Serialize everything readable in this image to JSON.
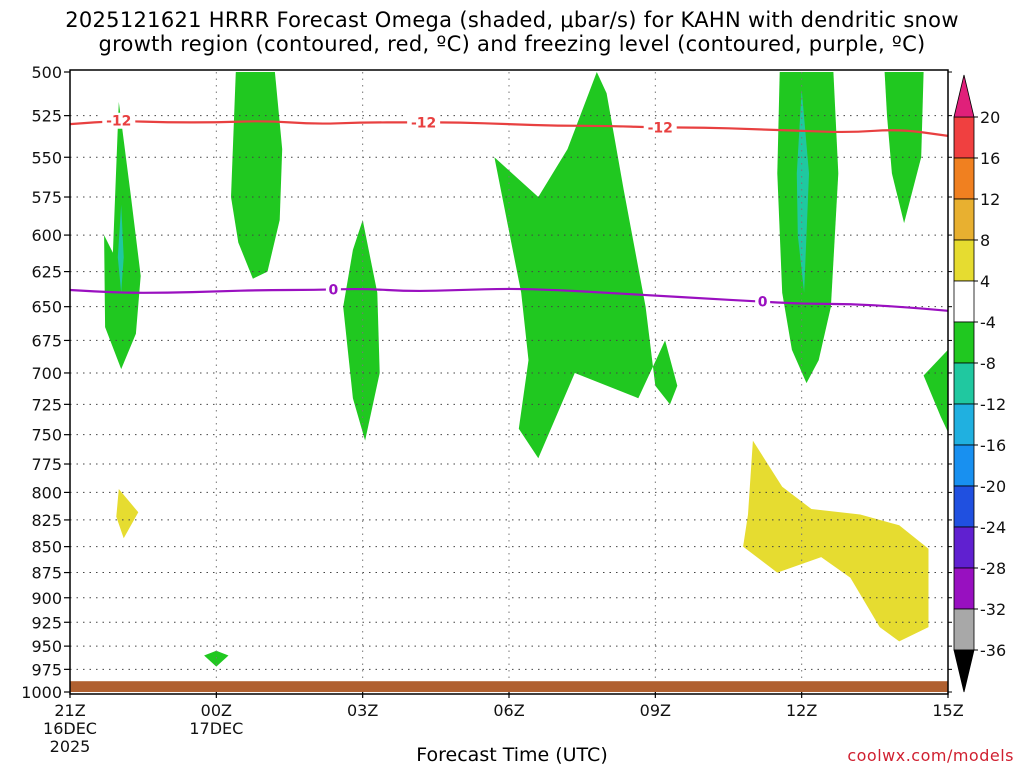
{
  "title_line1": "2025121621 HRRR Forecast Omega (shaded, μbar/s) for KAHN with dendritic snow",
  "title_line2": "growth region (contoured, red, ºC) and freezing level (contoured, purple, ºC)",
  "xlabel": "Forecast Time (UTC)",
  "credit": "coolwx.com/models",
  "chart_data": {
    "type": "time-height",
    "xlabel": "Forecast Time (UTC)",
    "ylabel": "",
    "ylim": [
      500,
      1000
    ],
    "y_scale": "pressure, inverted (log-like)",
    "xlim_hours": [
      0,
      18
    ],
    "grid": true,
    "y_ticks": [
      500,
      525,
      550,
      575,
      600,
      625,
      650,
      675,
      700,
      725,
      750,
      775,
      800,
      825,
      850,
      875,
      900,
      925,
      950,
      975,
      1000
    ],
    "x_ticks": [
      {
        "hour": 0,
        "label": "21Z",
        "sub1": "16DEC",
        "sub2": "2025"
      },
      {
        "hour": 3,
        "label": "00Z",
        "sub1": "17DEC",
        "sub2": ""
      },
      {
        "hour": 6,
        "label": "03Z",
        "sub1": "",
        "sub2": ""
      },
      {
        "hour": 9,
        "label": "06Z",
        "sub1": "",
        "sub2": ""
      },
      {
        "hour": 12,
        "label": "09Z",
        "sub1": "",
        "sub2": ""
      },
      {
        "hour": 15,
        "label": "12Z",
        "sub1": "",
        "sub2": ""
      },
      {
        "hour": 18,
        "label": "15Z",
        "sub1": "",
        "sub2": ""
      }
    ],
    "colorbar": {
      "labels": [
        "20",
        "16",
        "12",
        "8",
        "4",
        "-4",
        "-8",
        "-12",
        "-16",
        "-20",
        "-24",
        "-28",
        "-32",
        "-36"
      ],
      "bins": [
        {
          "from": 16,
          "to": 20,
          "color": "#f04040"
        },
        {
          "from": 12,
          "to": 16,
          "color": "#f08020"
        },
        {
          "from": 8,
          "to": 12,
          "color": "#e8b030"
        },
        {
          "from": 4,
          "to": 8,
          "color": "#e6dc30"
        },
        {
          "from": -4,
          "to": 4,
          "color": "#ffffff"
        },
        {
          "from": -8,
          "to": -4,
          "color": "#20c820"
        },
        {
          "from": -12,
          "to": -8,
          "color": "#20c8a0"
        },
        {
          "from": -16,
          "to": -12,
          "color": "#20b0e0"
        },
        {
          "from": -20,
          "to": -16,
          "color": "#1890f0"
        },
        {
          "from": -24,
          "to": -20,
          "color": "#2050e0"
        },
        {
          "from": -28,
          "to": -24,
          "color": "#6020d0"
        },
        {
          "from": -32,
          "to": -28,
          "color": "#9810c0"
        },
        {
          "from": -36,
          "to": -32,
          "color": "#a8a8a8"
        }
      ],
      "top_arrow_color": "#e0207a",
      "bottom_arrow_color": "#000000"
    },
    "omega_regions": [
      {
        "color": "#20c820",
        "pts": [
          [
            0.88,
            612
          ],
          [
            1.0,
            517
          ],
          [
            1.25,
            575
          ],
          [
            1.45,
            628
          ],
          [
            1.35,
            670
          ],
          [
            1.05,
            697
          ],
          [
            0.72,
            665
          ],
          [
            0.7,
            600
          ]
        ]
      },
      {
        "color": "#20c8a0",
        "pts": [
          [
            1.05,
            580
          ],
          [
            1.1,
            615
          ],
          [
            1.05,
            640
          ],
          [
            0.98,
            615
          ]
        ]
      },
      {
        "color": "#20c820",
        "pts": [
          [
            3.4,
            500
          ],
          [
            4.2,
            500
          ],
          [
            4.35,
            545
          ],
          [
            4.3,
            590
          ],
          [
            4.05,
            625
          ],
          [
            3.75,
            630
          ],
          [
            3.45,
            605
          ],
          [
            3.3,
            575
          ]
        ]
      },
      {
        "color": "#20c820",
        "pts": [
          [
            6.0,
            590
          ],
          [
            6.3,
            640
          ],
          [
            6.35,
            700
          ],
          [
            6.05,
            755
          ],
          [
            5.8,
            720
          ],
          [
            5.6,
            650
          ],
          [
            5.8,
            610
          ]
        ]
      },
      {
        "color": "#20c820",
        "pts": [
          [
            8.7,
            550
          ],
          [
            9.6,
            575
          ],
          [
            10.2,
            545
          ],
          [
            10.8,
            500
          ],
          [
            11.0,
            512
          ],
          [
            11.35,
            570
          ],
          [
            11.8,
            650
          ],
          [
            12.0,
            710
          ],
          [
            12.3,
            725
          ],
          [
            12.45,
            710
          ],
          [
            12.2,
            675
          ],
          [
            11.65,
            720
          ],
          [
            10.35,
            700
          ],
          [
            9.6,
            770
          ],
          [
            9.2,
            745
          ],
          [
            9.4,
            690
          ],
          [
            9.25,
            640
          ]
        ]
      },
      {
        "color": "#20c820",
        "pts": [
          [
            14.55,
            500
          ],
          [
            15.65,
            500
          ],
          [
            15.75,
            560
          ],
          [
            15.6,
            650
          ],
          [
            15.35,
            690
          ],
          [
            15.1,
            708
          ],
          [
            14.8,
            682
          ],
          [
            14.6,
            640
          ],
          [
            14.5,
            560
          ]
        ]
      },
      {
        "color": "#20c8a0",
        "pts": [
          [
            15.0,
            510
          ],
          [
            15.15,
            560
          ],
          [
            15.05,
            640
          ],
          [
            14.92,
            600
          ],
          [
            14.9,
            560
          ]
        ]
      },
      {
        "color": "#20c820",
        "pts": [
          [
            16.7,
            500
          ],
          [
            17.5,
            500
          ],
          [
            17.45,
            550
          ],
          [
            17.1,
            592
          ],
          [
            16.85,
            560
          ],
          [
            16.75,
            525
          ]
        ]
      },
      {
        "color": "#20c820",
        "pts": [
          [
            18.0,
            682
          ],
          [
            17.5,
            702
          ],
          [
            17.85,
            735
          ],
          [
            18.0,
            748
          ]
        ]
      },
      {
        "color": "#20c820",
        "pts": [
          [
            3.0,
            955
          ],
          [
            3.25,
            960
          ],
          [
            3.0,
            972
          ],
          [
            2.75,
            960
          ]
        ]
      },
      {
        "color": "#e6dc30",
        "pts": [
          [
            1.0,
            797
          ],
          [
            1.4,
            818
          ],
          [
            1.1,
            842
          ],
          [
            0.95,
            822
          ]
        ]
      },
      {
        "color": "#e6dc30",
        "pts": [
          [
            14.0,
            755
          ],
          [
            14.6,
            795
          ],
          [
            15.2,
            815
          ],
          [
            16.2,
            820
          ],
          [
            17.0,
            830
          ],
          [
            17.6,
            852
          ],
          [
            17.6,
            930
          ],
          [
            17.0,
            945
          ],
          [
            16.6,
            930
          ],
          [
            16.0,
            880
          ],
          [
            15.4,
            860
          ],
          [
            14.5,
            875
          ],
          [
            13.8,
            850
          ],
          [
            13.9,
            820
          ]
        ]
      }
    ],
    "contours": [
      {
        "name": "dendritic snow growth region",
        "color": "#e84040",
        "label": "-12",
        "label_at_hours": [
          1.0,
          7.25,
          12.1
        ],
        "pts": [
          [
            0,
            530
          ],
          [
            1,
            528
          ],
          [
            2,
            529
          ],
          [
            3,
            529
          ],
          [
            4,
            528
          ],
          [
            5,
            530
          ],
          [
            6,
            529
          ],
          [
            7,
            529
          ],
          [
            8,
            529
          ],
          [
            9,
            530
          ],
          [
            10,
            531
          ],
          [
            11,
            531
          ],
          [
            12,
            532
          ],
          [
            13,
            532
          ],
          [
            14,
            533
          ],
          [
            15,
            534
          ],
          [
            16,
            535
          ],
          [
            17,
            533
          ],
          [
            18,
            537
          ]
        ]
      },
      {
        "name": "freezing level",
        "color": "#9a10c0",
        "label": "0",
        "label_at_hours": [
          5.4,
          14.2
        ],
        "pts": [
          [
            0,
            638
          ],
          [
            1,
            640
          ],
          [
            2,
            640
          ],
          [
            3,
            639
          ],
          [
            4,
            638
          ],
          [
            5,
            638
          ],
          [
            6,
            637
          ],
          [
            7,
            639
          ],
          [
            8,
            638
          ],
          [
            9,
            637
          ],
          [
            10,
            638
          ],
          [
            11,
            640
          ],
          [
            12,
            642
          ],
          [
            13,
            644
          ],
          [
            14,
            646
          ],
          [
            15,
            648
          ],
          [
            16,
            648
          ],
          [
            17,
            650
          ],
          [
            18,
            653
          ]
        ]
      }
    ],
    "surface": {
      "name": "terrain",
      "color": "#b06030",
      "pressure": 988
    }
  }
}
